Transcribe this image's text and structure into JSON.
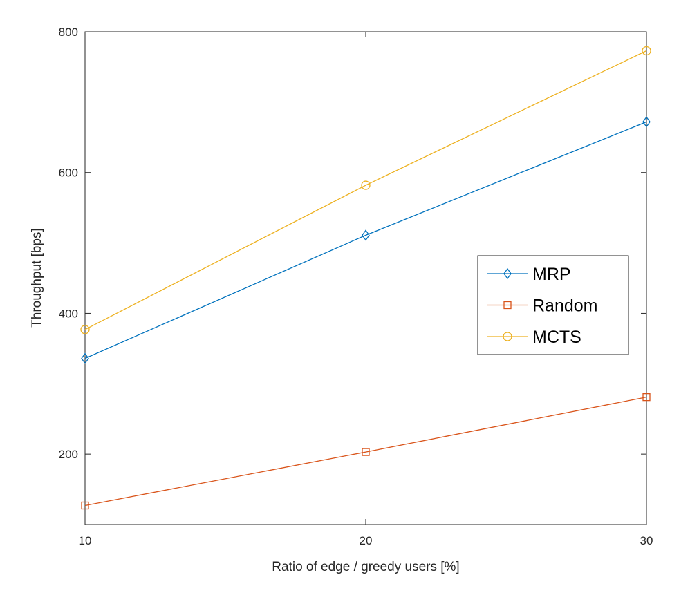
{
  "chart_data": {
    "type": "line",
    "title": "",
    "xlabel": "Ratio of edge / greedy users [%]",
    "ylabel": "Throughput [bps]",
    "x": [
      10,
      20,
      30
    ],
    "xlim": [
      10,
      30
    ],
    "ylim": [
      100,
      800
    ],
    "xticks": [
      "10",
      "20",
      "30"
    ],
    "yticks": [
      "200",
      "400",
      "600",
      "800"
    ],
    "legend_position": "right",
    "series": [
      {
        "name": "MRP",
        "values": [
          336,
          511,
          672
        ],
        "color": "#0072BD",
        "marker": "diamond"
      },
      {
        "name": "Random",
        "values": [
          127,
          203,
          281
        ],
        "color": "#D95319",
        "marker": "square"
      },
      {
        "name": "MCTS",
        "values": [
          377,
          582,
          773
        ],
        "color": "#EDB120",
        "marker": "circle"
      }
    ]
  }
}
